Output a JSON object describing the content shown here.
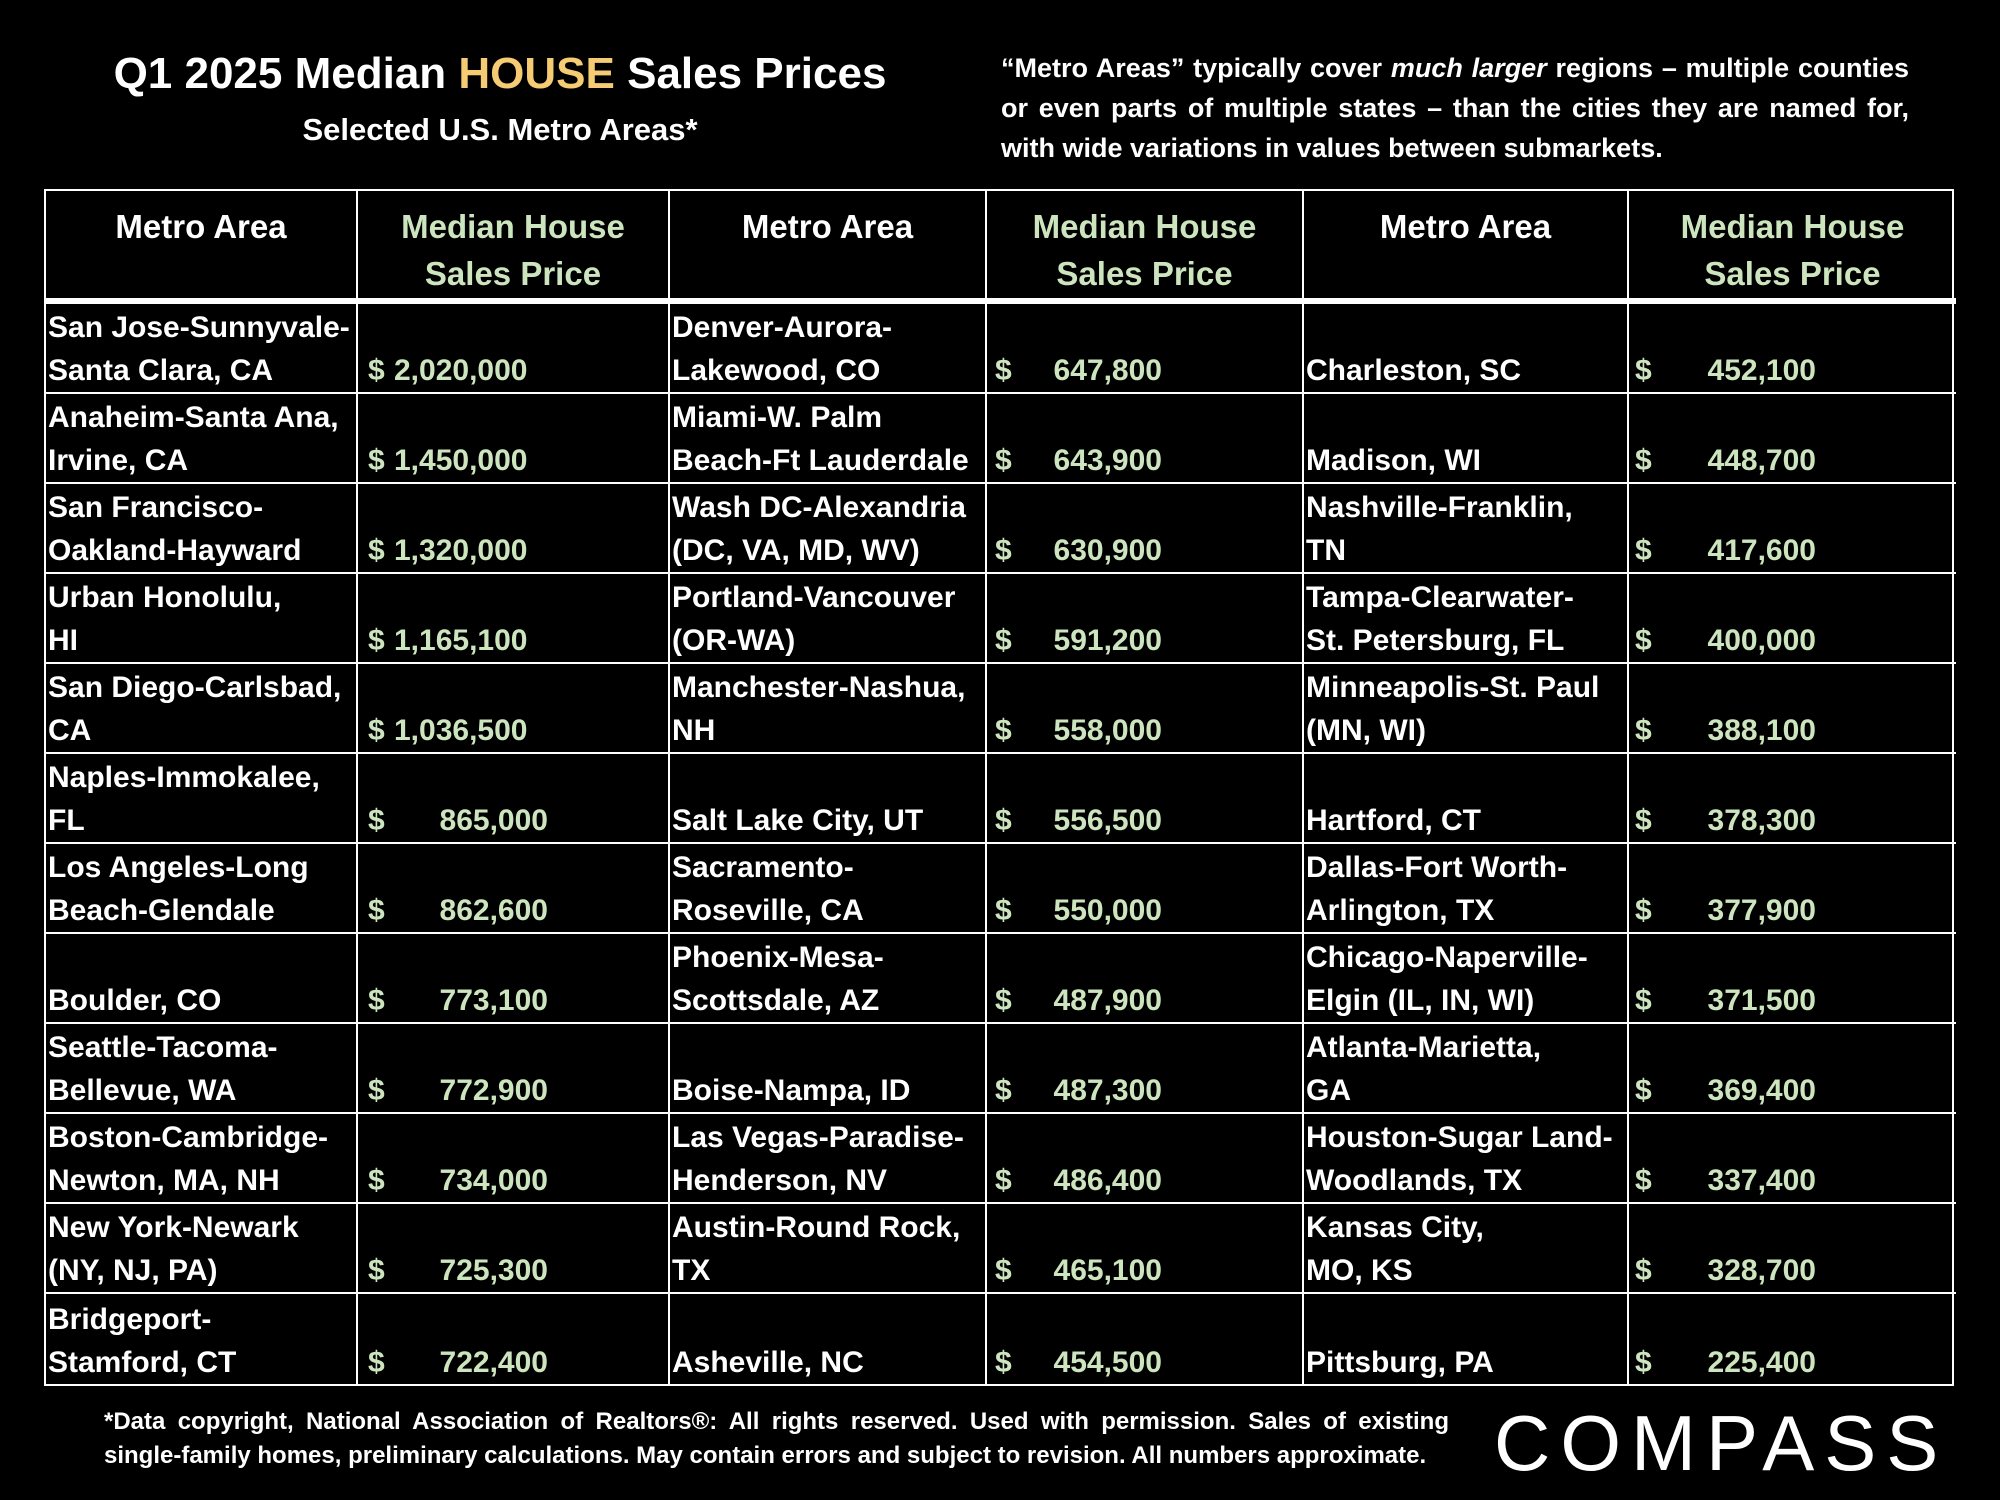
{
  "title": {
    "prefix": "Q1 2025 Median ",
    "highlight": "HOUSE",
    "suffix": " Sales Prices",
    "subtitle": "Selected U.S. Metro Areas*"
  },
  "note": {
    "part1": "“Metro Areas” typically cover ",
    "emph": "much larger",
    "part2": " regions – multiple counties or even parts of multiple states – than the cities they are named for, with wide variations in values between submarkets."
  },
  "headers": {
    "metro": "Metro Area",
    "price": "Median House Sales Price"
  },
  "columns": [
    [
      {
        "name": [
          "San Jose-Sunnyvale-",
          "Santa Clara, CA"
        ],
        "dollar": "$",
        "amount": "2,020,000"
      },
      {
        "name": [
          "Anaheim-Santa Ana,",
          "Irvine, CA"
        ],
        "dollar": "$",
        "amount": "1,450,000"
      },
      {
        "name": [
          "San Francisco-",
          "Oakland-Hayward"
        ],
        "dollar": "$",
        "amount": "1,320,000"
      },
      {
        "name": [
          "Urban Honolulu,",
          "HI"
        ],
        "dollar": "$",
        "amount": "1,165,100"
      },
      {
        "name": [
          "San Diego-Carlsbad,",
          "CA"
        ],
        "dollar": "$",
        "amount": "1,036,500"
      },
      {
        "name": [
          "Naples-Immokalee,",
          "FL"
        ],
        "dollar": "$",
        "amount": "865,000"
      },
      {
        "name": [
          "Los Angeles-Long",
          "Beach-Glendale"
        ],
        "dollar": "$",
        "amount": "862,600"
      },
      {
        "name": [
          "Boulder, CO"
        ],
        "dollar": "$",
        "amount": "773,100"
      },
      {
        "name": [
          "Seattle-Tacoma-",
          "Bellevue, WA"
        ],
        "dollar": "$",
        "amount": "772,900"
      },
      {
        "name": [
          "Boston-Cambridge-",
          "Newton, MA, NH"
        ],
        "dollar": "$",
        "amount": "734,000"
      },
      {
        "name": [
          "New York-Newark",
          "(NY, NJ, PA)"
        ],
        "dollar": "$",
        "amount": "725,300"
      },
      {
        "name": [
          "Bridgeport-",
          "Stamford, CT"
        ],
        "dollar": "$",
        "amount": "722,400"
      }
    ],
    [
      {
        "name": [
          "Denver-Aurora-",
          "Lakewood, CO"
        ],
        "dollar": "$",
        "amount": "647,800"
      },
      {
        "name": [
          "Miami-W. Palm",
          "Beach-Ft Lauderdale"
        ],
        "dollar": "$",
        "amount": "643,900"
      },
      {
        "name": [
          "Wash DC-Alexandria",
          " (DC, VA, MD, WV)"
        ],
        "dollar": "$",
        "amount": "630,900"
      },
      {
        "name": [
          "Portland-Vancouver",
          "(OR-WA)"
        ],
        "dollar": "$",
        "amount": "591,200"
      },
      {
        "name": [
          "Manchester-Nashua,",
          "NH"
        ],
        "dollar": "$",
        "amount": "558,000"
      },
      {
        "name": [
          "Salt Lake City, UT"
        ],
        "dollar": "$",
        "amount": "556,500"
      },
      {
        "name": [
          "Sacramento-",
          "Roseville, CA"
        ],
        "dollar": "$",
        "amount": "550,000"
      },
      {
        "name": [
          "Phoenix-Mesa-",
          "Scottsdale, AZ"
        ],
        "dollar": "$",
        "amount": "487,900"
      },
      {
        "name": [
          "Boise-Nampa, ID"
        ],
        "dollar": "$",
        "amount": "487,300"
      },
      {
        "name": [
          "Las Vegas-Paradise-",
          "Henderson, NV"
        ],
        "dollar": "$",
        "amount": "486,400"
      },
      {
        "name": [
          "Austin-Round Rock,",
          "TX"
        ],
        "dollar": "$",
        "amount": "465,100"
      },
      {
        "name": [
          "Asheville, NC"
        ],
        "dollar": "$",
        "amount": "454,500"
      }
    ],
    [
      {
        "name": [
          "Charleston, SC"
        ],
        "dollar": "$",
        "amount": "452,100"
      },
      {
        "name": [
          "Madison, WI"
        ],
        "dollar": "$",
        "amount": "448,700"
      },
      {
        "name": [
          "Nashville-Franklin,",
          "TN"
        ],
        "dollar": "$",
        "amount": "417,600"
      },
      {
        "name": [
          "Tampa-Clearwater-",
          "St. Petersburg, FL"
        ],
        "dollar": "$",
        "amount": "400,000"
      },
      {
        "name": [
          "Minneapolis-St. Paul",
          "(MN, WI)"
        ],
        "dollar": "$",
        "amount": "388,100"
      },
      {
        "name": [
          "Hartford, CT"
        ],
        "dollar": "$",
        "amount": "378,300"
      },
      {
        "name": [
          "Dallas-Fort Worth-",
          "Arlington, TX"
        ],
        "dollar": "$",
        "amount": "377,900"
      },
      {
        "name": [
          "Chicago-Naperville-",
          "Elgin (IL, IN, WI)"
        ],
        "dollar": "$",
        "amount": "371,500"
      },
      {
        "name": [
          "Atlanta-Marietta,",
          "GA"
        ],
        "dollar": "$",
        "amount": "369,400"
      },
      {
        "name": [
          "Houston-Sugar Land-",
          "Woodlands, TX"
        ],
        "dollar": "$",
        "amount": "337,400"
      },
      {
        "name": [
          "Kansas City,",
          "MO, KS"
        ],
        "dollar": "$",
        "amount": "328,700"
      },
      {
        "name": [
          "Pittsburg, PA"
        ],
        "dollar": "$",
        "amount": "225,400"
      }
    ]
  ],
  "footer": "*Data copyright, National Association of Realtors®: All rights reserved. Used with permission. Sales of existing single-family homes, preliminary calculations. May contain errors and subject to revision. All numbers approximate.",
  "logo": "COMPASS"
}
